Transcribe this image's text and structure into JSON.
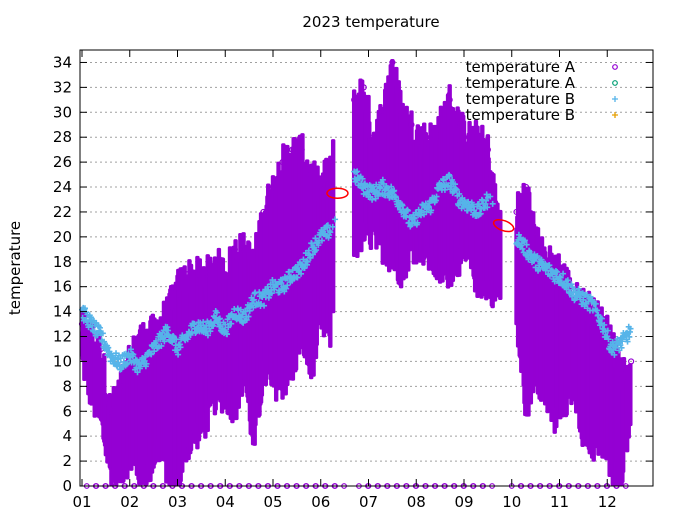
{
  "chart_data": {
    "type": "scatter",
    "title": "2023 temperature",
    "xlabel": "",
    "ylabel": "temperature",
    "ylim": [
      0,
      35
    ],
    "yticks": [
      0,
      2,
      4,
      6,
      8,
      10,
      12,
      14,
      16,
      18,
      20,
      22,
      24,
      26,
      28,
      30,
      32,
      34
    ],
    "xlim": [
      1,
      12.8
    ],
    "xticks": [
      {
        "value": 1,
        "label": "01"
      },
      {
        "value": 2,
        "label": "02"
      },
      {
        "value": 3,
        "label": "03"
      },
      {
        "value": 4,
        "label": "04"
      },
      {
        "value": 5,
        "label": "05"
      },
      {
        "value": 6,
        "label": "06"
      },
      {
        "value": 7,
        "label": "07"
      },
      {
        "value": 8,
        "label": "08"
      },
      {
        "value": 9,
        "label": "09"
      },
      {
        "value": 10,
        "label": "10"
      },
      {
        "value": 11,
        "label": "11"
      },
      {
        "value": 12,
        "label": "12"
      }
    ],
    "grid": true,
    "legend_position": "top-right",
    "series": [
      {
        "name": "temperature A",
        "color": "#9400d3",
        "marker": "circle",
        "note_kind": "fluctuating band",
        "x": [
          1.0,
          1.2,
          1.4,
          1.6,
          1.8,
          2.0,
          2.2,
          2.4,
          2.6,
          2.8,
          3.0,
          3.2,
          3.4,
          3.6,
          3.8,
          4.0,
          4.2,
          4.4,
          4.6,
          4.8,
          5.0,
          5.2,
          5.4,
          5.6,
          5.8,
          6.0,
          6.2,
          6.7,
          6.9,
          7.1,
          7.3,
          7.5,
          7.7,
          7.9,
          8.1,
          8.3,
          8.5,
          8.7,
          8.9,
          9.1,
          9.3,
          9.5,
          9.7,
          10.1,
          10.3,
          10.5,
          10.7,
          10.9,
          11.1,
          11.3,
          11.5,
          11.7,
          11.9,
          12.1,
          12.3,
          12.5
        ],
        "low": [
          10,
          7,
          5,
          1,
          1,
          2,
          1,
          1,
          3,
          1,
          0,
          3,
          4,
          5,
          7,
          7,
          6,
          9,
          3,
          9,
          8,
          8,
          9,
          12,
          9,
          13,
          12,
          19,
          20,
          20,
          19,
          18,
          17,
          19,
          19,
          18,
          17,
          17,
          18,
          18,
          16,
          16,
          15,
          13,
          6,
          9,
          7,
          5,
          6,
          8,
          4,
          3,
          3,
          1,
          1,
          6
        ],
        "high": [
          13,
          12,
          11,
          6,
          8,
          10,
          12,
          12,
          13,
          14,
          16,
          17,
          17,
          17,
          18,
          17,
          19,
          19,
          18,
          22,
          24,
          26,
          27,
          27,
          25,
          24,
          26,
          31,
          32,
          28,
          30,
          34,
          30,
          29,
          28,
          28,
          29,
          31,
          29,
          28,
          28,
          27,
          22,
          22,
          24,
          20,
          18,
          18,
          17,
          15,
          15,
          14,
          13,
          12,
          9,
          10
        ]
      },
      {
        "name": "temperature A",
        "color": "#009e73",
        "marker": "circle",
        "y_constant": 0,
        "x": [
          1.1,
          1.3,
          1.5,
          1.7,
          1.9,
          2.1,
          2.3,
          2.5,
          2.7,
          2.9,
          3.1,
          3.3,
          3.5,
          3.7,
          3.9,
          4.1,
          4.3,
          4.5,
          4.7,
          4.9,
          5.1,
          5.3,
          5.5,
          5.7,
          5.9,
          6.1,
          6.3,
          6.8,
          7.0,
          7.2,
          7.4,
          7.6,
          7.8,
          8.0,
          8.2,
          8.4,
          8.6,
          8.8,
          9.0,
          9.2,
          9.4,
          10.0,
          10.2,
          10.4,
          10.6,
          10.8,
          11.0,
          11.2,
          11.4,
          11.6,
          11.8,
          12.0,
          12.2
        ]
      },
      {
        "name": "temperature B",
        "color": "#56b4e9",
        "marker": "plus",
        "x": [
          1.0,
          1.2,
          1.4,
          1.6,
          1.8,
          2.0,
          2.2,
          2.4,
          2.6,
          2.8,
          3.0,
          3.2,
          3.4,
          3.6,
          3.8,
          4.0,
          4.2,
          4.4,
          4.6,
          4.8,
          5.0,
          5.2,
          5.4,
          5.6,
          5.8,
          6.0,
          6.2,
          6.7,
          6.9,
          7.1,
          7.3,
          7.5,
          7.7,
          7.9,
          8.1,
          8.3,
          8.5,
          8.7,
          8.9,
          9.1,
          9.3,
          9.5,
          10.1,
          10.3,
          10.5,
          10.7,
          10.9,
          11.1,
          11.3,
          11.5,
          11.7,
          11.9,
          12.1,
          12.3,
          12.5
        ],
        "values": [
          14,
          13,
          12,
          10.5,
          9.8,
          10.5,
          9.5,
          10.5,
          11.5,
          12.5,
          11,
          12,
          13,
          12.5,
          13.5,
          12.5,
          14,
          13.5,
          15,
          15,
          16,
          16,
          17,
          17.5,
          19,
          20,
          20.5,
          25,
          24,
          23.5,
          24,
          23.5,
          22.5,
          21,
          22,
          22.5,
          24,
          24.5,
          23,
          22.5,
          22,
          23,
          20,
          19,
          18,
          17.5,
          17,
          16.5,
          15.5,
          15,
          14.5,
          13,
          11,
          11.5,
          12.5
        ],
        "spread": 0.6
      },
      {
        "name": "temperature B",
        "color": "#e69f00",
        "marker": "plus",
        "x": [],
        "values": []
      }
    ],
    "annotations": [
      {
        "shape": "ellipse",
        "color": "#ff0000",
        "x": 6.35,
        "y": 23.5,
        "rx_units": 0.22,
        "ry_units": 0.4
      },
      {
        "shape": "ellipse",
        "color": "#ff0000",
        "x": 9.83,
        "y": 20.9,
        "rx_units": 0.22,
        "ry_units": 0.4,
        "angle_deg": 20
      }
    ]
  }
}
